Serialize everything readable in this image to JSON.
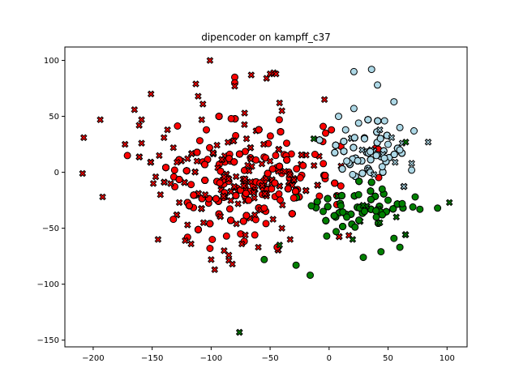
{
  "chart_data": {
    "type": "scatter",
    "title": "dipencoder on kampff_c37",
    "xlabel": "",
    "ylabel": "",
    "xlim": [
      -224,
      117
    ],
    "ylim": [
      -156,
      112
    ],
    "x_ticks": [
      -200,
      -150,
      -100,
      -50,
      0,
      50,
      100
    ],
    "y_ticks": [
      -150,
      -100,
      -50,
      0,
      50,
      100
    ],
    "grid": false,
    "legend": false,
    "colors": {
      "red": "#ff0000",
      "lightblue": "#add8e6",
      "green": "#008000",
      "edge": "#000000"
    },
    "clusters": [
      {
        "color": "red",
        "center": [
          -55,
          -2
        ],
        "spread": [
          38,
          24
        ],
        "count": 520
      },
      {
        "color": "red",
        "center": [
          -90,
          0
        ],
        "spread": [
          28,
          30
        ],
        "count": 320
      },
      {
        "color": "lightblue",
        "center": [
          35,
          22
        ],
        "spread": [
          17,
          15
        ],
        "count": 360
      },
      {
        "color": "green",
        "center": [
          28,
          -28
        ],
        "spread": [
          22,
          12
        ],
        "count": 280
      }
    ],
    "series": [
      {
        "color": "red",
        "points": [
          [
            -171,
            15,
            "o"
          ],
          [
            -132,
            -42,
            "o"
          ],
          [
            -120,
            -58,
            "o"
          ],
          [
            -101,
            -68,
            "o"
          ],
          [
            -99,
            -60,
            "o"
          ],
          [
            -87,
            -57,
            "o"
          ],
          [
            -75,
            -55,
            "o"
          ],
          [
            -63,
            -56,
            "o"
          ],
          [
            -44,
            -67,
            "o"
          ],
          [
            -80,
            85,
            "o"
          ],
          [
            -80,
            80,
            "o"
          ],
          [
            -83,
            48,
            "o"
          ],
          [
            -36,
            26,
            "o"
          ],
          [
            -5,
            41,
            "o"
          ],
          [
            -3,
            35,
            "o"
          ],
          [
            2,
            38,
            "o"
          ],
          [
            -131,
            2,
            "o"
          ],
          [
            -104,
            38,
            "o"
          ],
          [
            -92,
            1,
            "o"
          ],
          [
            -62,
            11,
            "o"
          ],
          [
            -30,
            -23,
            "o"
          ],
          [
            -22,
            6,
            "o"
          ],
          [
            -12,
            16,
            "o"
          ],
          [
            -55,
            -32,
            "o"
          ],
          [
            -208,
            31,
            "x"
          ],
          [
            -209,
            -1,
            "x"
          ],
          [
            -194,
            47,
            "x"
          ],
          [
            -192,
            -22,
            "x"
          ],
          [
            -173,
            25,
            "x"
          ],
          [
            -165,
            56,
            "x"
          ],
          [
            -161,
            42,
            "x"
          ],
          [
            -159,
            47,
            "x"
          ],
          [
            -159,
            26,
            "x"
          ],
          [
            -151,
            70,
            "x"
          ],
          [
            -149,
            -10,
            "x"
          ],
          [
            -147,
            -4,
            "x"
          ],
          [
            -144,
            15,
            "x"
          ],
          [
            -143,
            -20,
            "x"
          ],
          [
            -140,
            31,
            "x"
          ],
          [
            -137,
            38,
            "x"
          ],
          [
            -132,
            22,
            "x"
          ],
          [
            -129,
            9,
            "x"
          ],
          [
            -127,
            -27,
            "x"
          ],
          [
            -122,
            -61,
            "x"
          ],
          [
            -120,
            -47,
            "x"
          ],
          [
            -117,
            -64,
            "x"
          ],
          [
            -113,
            79,
            "x"
          ],
          [
            -111,
            68,
            "x"
          ],
          [
            -108,
            47,
            "x"
          ],
          [
            -107,
            61,
            "x"
          ],
          [
            -101,
            100,
            "x"
          ],
          [
            -100,
            -78,
            "x"
          ],
          [
            -97,
            -87,
            "x"
          ],
          [
            -89,
            -70,
            "x"
          ],
          [
            -85,
            -74,
            "x"
          ],
          [
            -82,
            -82,
            "x"
          ],
          [
            -80,
            77,
            "x"
          ],
          [
            -74,
            -64,
            "x"
          ],
          [
            -71,
            -56,
            "x"
          ],
          [
            -66,
            87,
            "x"
          ],
          [
            -63,
            -38,
            "x"
          ],
          [
            -53,
            84,
            "x"
          ],
          [
            -50,
            88,
            "x"
          ],
          [
            -47,
            89,
            "x"
          ],
          [
            -45,
            88,
            "x"
          ],
          [
            -42,
            62,
            "x"
          ],
          [
            -40,
            55,
            "x"
          ],
          [
            -76,
            -143,
            "x"
          ],
          [
            -145,
            -60,
            "x"
          ],
          [
            -60,
            -67,
            "x"
          ],
          [
            -33,
            -60,
            "x"
          ],
          [
            -40,
            -50,
            "x"
          ],
          [
            -105,
            -20,
            "x"
          ],
          [
            -112,
            10,
            "x"
          ],
          [
            -70,
            30,
            "x"
          ],
          [
            -50,
            10,
            "x"
          ]
        ]
      },
      {
        "color": "lightblue",
        "points": [
          [
            21,
            90,
            "o"
          ],
          [
            36,
            92,
            "o"
          ],
          [
            41,
            78,
            "o"
          ],
          [
            55,
            63,
            "o"
          ],
          [
            21,
            57,
            "o"
          ],
          [
            47,
            46,
            "o"
          ],
          [
            60,
            40,
            "o"
          ],
          [
            72,
            37,
            "o"
          ],
          [
            70,
            2,
            "o"
          ],
          [
            8,
            50,
            "o"
          ],
          [
            14,
            38,
            "o"
          ],
          [
            25,
            44,
            "o"
          ],
          [
            30,
            30,
            "o"
          ],
          [
            40,
            15,
            "o"
          ],
          [
            50,
            25,
            "o"
          ],
          [
            45,
            5,
            "o"
          ],
          [
            60,
            20,
            "o"
          ],
          [
            15,
            10,
            "o"
          ],
          [
            20,
            -2,
            "o"
          ],
          [
            35,
            0,
            "o"
          ],
          [
            84,
            27,
            "x"
          ],
          [
            62,
            26,
            "x"
          ],
          [
            53,
            31,
            "x"
          ],
          [
            70,
            8,
            "x"
          ],
          [
            43,
            38,
            "x"
          ],
          [
            28,
            20,
            "x"
          ],
          [
            56,
            9,
            "x"
          ],
          [
            38,
            -2,
            "x"
          ]
        ]
      },
      {
        "color": "green",
        "points": [
          [
            -55,
            -78,
            "o"
          ],
          [
            -28,
            -83,
            "o"
          ],
          [
            -16,
            -92,
            "o"
          ],
          [
            -2,
            -57,
            "o"
          ],
          [
            29,
            -76,
            "o"
          ],
          [
            44,
            -71,
            "o"
          ],
          [
            55,
            -59,
            "o"
          ],
          [
            60,
            -67,
            "o"
          ],
          [
            71,
            -31,
            "o"
          ],
          [
            77,
            -33,
            "o"
          ],
          [
            92,
            -32,
            "o"
          ],
          [
            73,
            -22,
            "o"
          ],
          [
            6,
            -53,
            "o"
          ],
          [
            22,
            -49,
            "o"
          ],
          [
            40,
            -40,
            "o"
          ],
          [
            50,
            -25,
            "o"
          ],
          [
            62,
            -28,
            "o"
          ],
          [
            10,
            -30,
            "o"
          ],
          [
            25,
            -20,
            "o"
          ],
          [
            -5,
            -35,
            "o"
          ],
          [
            -15,
            -30,
            "o"
          ],
          [
            30,
            -35,
            "o"
          ],
          [
            45,
            -15,
            "o"
          ],
          [
            15,
            -40,
            "o"
          ],
          [
            -76,
            -143,
            "x"
          ],
          [
            -42,
            -65,
            "x"
          ],
          [
            102,
            -27,
            "x"
          ],
          [
            65,
            27,
            "x"
          ],
          [
            -13,
            30,
            "x"
          ],
          [
            20,
            -60,
            "x"
          ],
          [
            43,
            -45,
            "x"
          ],
          [
            57,
            -40,
            "x"
          ]
        ]
      }
    ]
  }
}
